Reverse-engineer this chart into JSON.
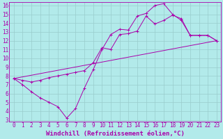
{
  "background_color": "#b2eaea",
  "line_color": "#aa00aa",
  "grid_color": "#99cccc",
  "xlabel": "Windchill (Refroidissement éolien,°C)",
  "xlabel_fontsize": 6.5,
  "tick_fontsize": 5.5,
  "xlim": [
    -0.5,
    23.5
  ],
  "ylim": [
    2.8,
    16.4
  ],
  "xticks": [
    0,
    1,
    2,
    3,
    4,
    5,
    6,
    7,
    8,
    9,
    10,
    11,
    12,
    13,
    14,
    15,
    16,
    17,
    18,
    19,
    20,
    21,
    22,
    23
  ],
  "yticks": [
    3,
    4,
    5,
    6,
    7,
    8,
    9,
    10,
    11,
    12,
    13,
    14,
    15,
    16
  ],
  "line1_x": [
    0,
    1,
    2,
    3,
    4,
    5,
    6,
    7,
    8,
    9,
    10,
    11,
    12,
    13,
    14,
    15,
    16,
    17,
    18,
    19,
    20,
    21,
    22,
    23
  ],
  "line1_y": [
    7.7,
    7.0,
    6.2,
    5.5,
    5.0,
    4.5,
    3.2,
    4.3,
    6.6,
    8.7,
    11.0,
    12.7,
    13.3,
    13.2,
    14.8,
    15.1,
    16.0,
    16.2,
    15.0,
    14.3,
    12.6,
    12.6,
    12.6,
    12.0
  ],
  "line2_x": [
    0,
    1,
    2,
    3,
    4,
    5,
    6,
    7,
    8,
    9,
    10,
    11,
    12,
    13,
    14,
    15,
    16,
    17,
    18,
    19,
    20,
    21,
    22,
    23
  ],
  "line2_y": [
    7.7,
    7.5,
    7.3,
    7.5,
    7.8,
    8.0,
    8.2,
    8.4,
    8.6,
    9.5,
    11.2,
    11.0,
    12.7,
    12.8,
    13.1,
    14.8,
    13.9,
    14.3,
    14.9,
    14.5,
    12.6,
    12.6,
    12.6,
    12.0
  ],
  "line3_x": [
    0,
    23
  ],
  "line3_y": [
    7.7,
    12.0
  ]
}
